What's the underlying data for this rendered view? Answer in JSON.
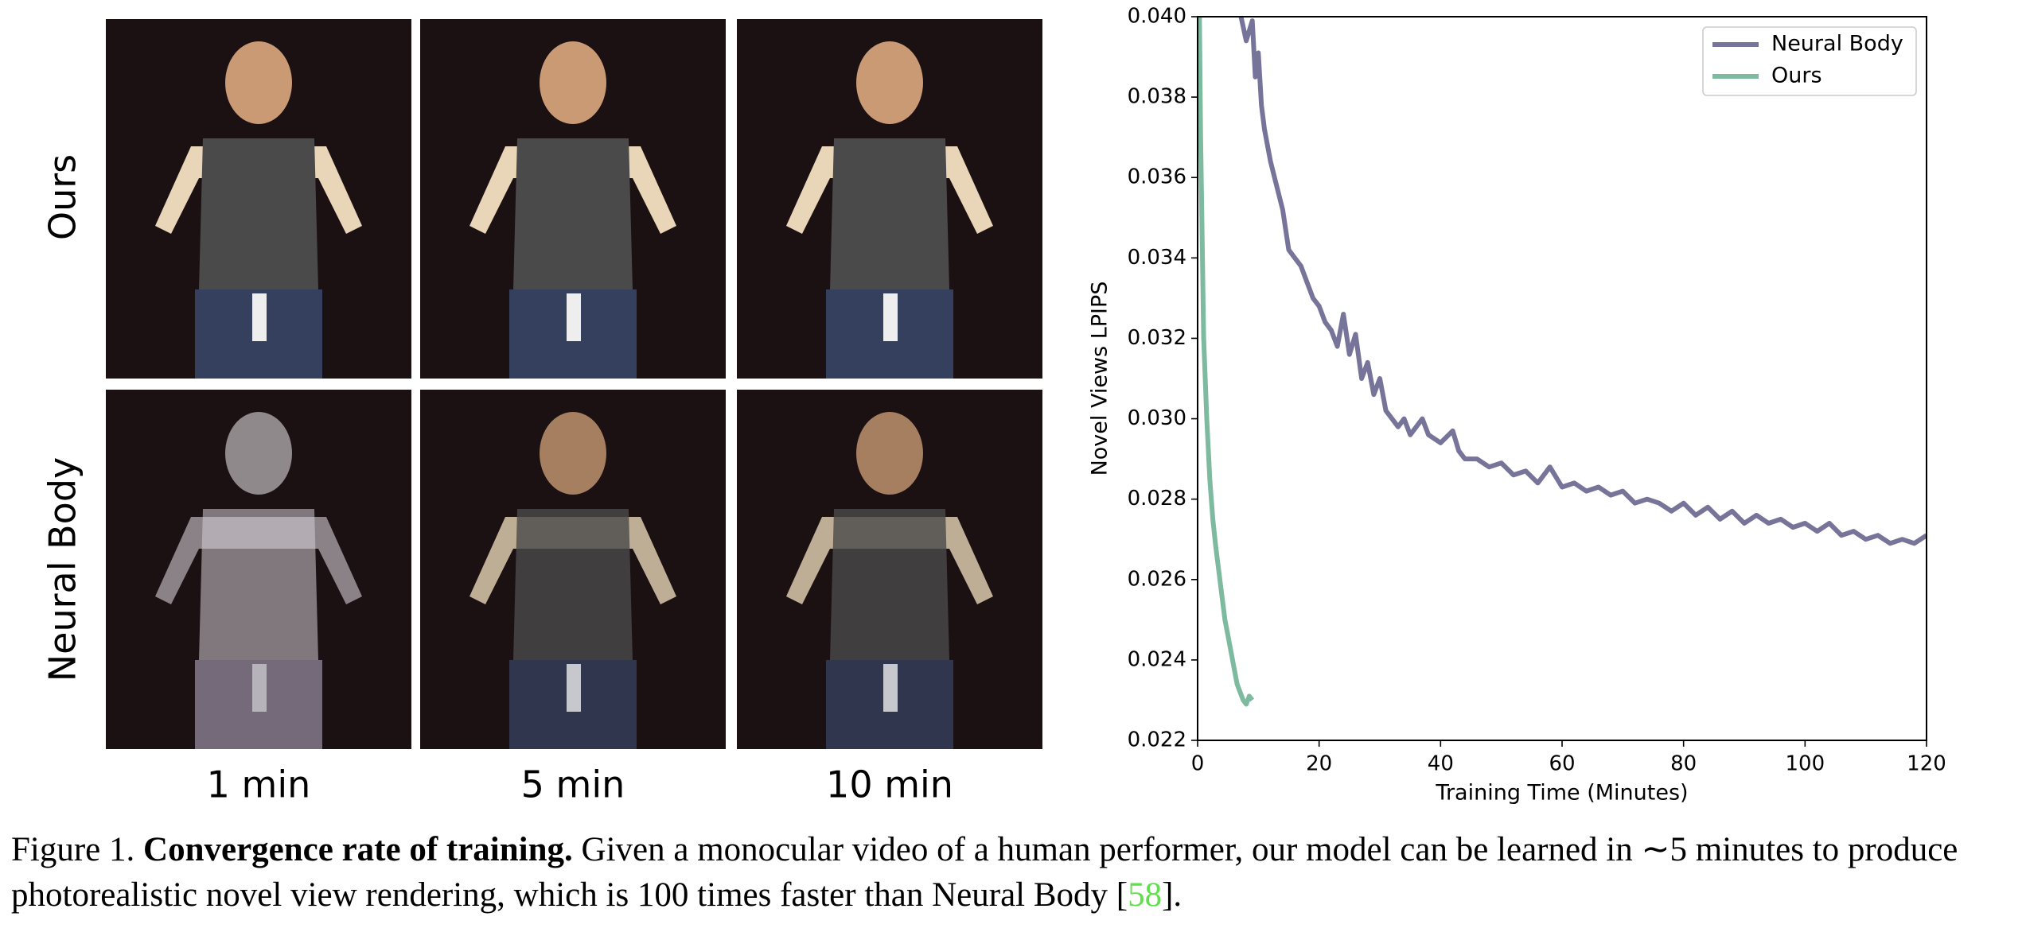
{
  "figure": {
    "row_labels": [
      "Ours",
      "Neural Body"
    ],
    "column_labels": [
      "1 min",
      "5 min",
      "10 min"
    ]
  },
  "chart_data": {
    "type": "line",
    "xlabel": "Training Time (Minutes)",
    "ylabel": "Novel Views LPIPS",
    "xlim": [
      0,
      120
    ],
    "ylim": [
      0.022,
      0.04
    ],
    "xticks": [
      0,
      20,
      40,
      60,
      80,
      100,
      120
    ],
    "yticks": [
      0.022,
      0.024,
      0.026,
      0.028,
      {
        "value": 0.03,
        "label": "0.030"
      },
      0.032,
      0.034,
      0.036,
      0.038,
      {
        "value": 0.04,
        "label": "0.040"
      }
    ],
    "legend": "upper right",
    "series": [
      {
        "name": "Neural Body",
        "color": "#77749a",
        "x": [
          7,
          8,
          9,
          9.5,
          10,
          10.5,
          11,
          12,
          13,
          14,
          15,
          16,
          17,
          18,
          19,
          20,
          21,
          22,
          23,
          24,
          25,
          26,
          27,
          28,
          29,
          30,
          31,
          32,
          33,
          34,
          35,
          36,
          37,
          38,
          40,
          42,
          43,
          44,
          46,
          48,
          50,
          52,
          54,
          56,
          58,
          60,
          62,
          64,
          66,
          68,
          70,
          72,
          74,
          76,
          78,
          80,
          82,
          84,
          86,
          88,
          90,
          92,
          94,
          96,
          98,
          100,
          102,
          104,
          106,
          108,
          110,
          112,
          114,
          116,
          118,
          120
        ],
        "values": [
          0.0401,
          0.0394,
          0.0399,
          0.0385,
          0.0391,
          0.0378,
          0.0372,
          0.0364,
          0.0358,
          0.0352,
          0.0342,
          0.034,
          0.0338,
          0.0334,
          0.033,
          0.0328,
          0.0324,
          0.0322,
          0.0318,
          0.0326,
          0.0316,
          0.0321,
          0.031,
          0.0314,
          0.0306,
          0.031,
          0.0302,
          0.03,
          0.0298,
          0.03,
          0.0296,
          0.0298,
          0.03,
          0.0296,
          0.0294,
          0.0297,
          0.0292,
          0.029,
          0.029,
          0.0288,
          0.0289,
          0.0286,
          0.0287,
          0.0284,
          0.0288,
          0.0283,
          0.0284,
          0.0282,
          0.0283,
          0.0281,
          0.0282,
          0.0279,
          0.028,
          0.0279,
          0.0277,
          0.0279,
          0.0276,
          0.0278,
          0.0275,
          0.0277,
          0.0274,
          0.0276,
          0.0274,
          0.0275,
          0.0273,
          0.0274,
          0.0272,
          0.0274,
          0.0271,
          0.0272,
          0.027,
          0.0271,
          0.0269,
          0.027,
          0.0269,
          0.0271
        ]
      },
      {
        "name": "Ours",
        "color": "#7dbaa0",
        "x": [
          0.3,
          0.5,
          0.8,
          1,
          1.5,
          2,
          2.5,
          3,
          3.5,
          4,
          4.5,
          5,
          5.5,
          6,
          6.5,
          7,
          7.5,
          8,
          8.5,
          9
        ],
        "values": [
          0.04,
          0.037,
          0.034,
          0.032,
          0.03,
          0.0285,
          0.0275,
          0.0268,
          0.0262,
          0.0256,
          0.025,
          0.0246,
          0.0242,
          0.0238,
          0.0234,
          0.0232,
          0.023,
          0.0229,
          0.0231,
          0.023
        ]
      }
    ]
  },
  "caption": {
    "label": "Figure 1.",
    "bold": "Convergence rate of training.",
    "text": "Given a monocular video of a human performer, our model can be learned in ∼5 minutes to produce photorealistic novel view rendering, which is 100 times faster than Neural Body [",
    "ref": "58",
    "end": "]."
  }
}
